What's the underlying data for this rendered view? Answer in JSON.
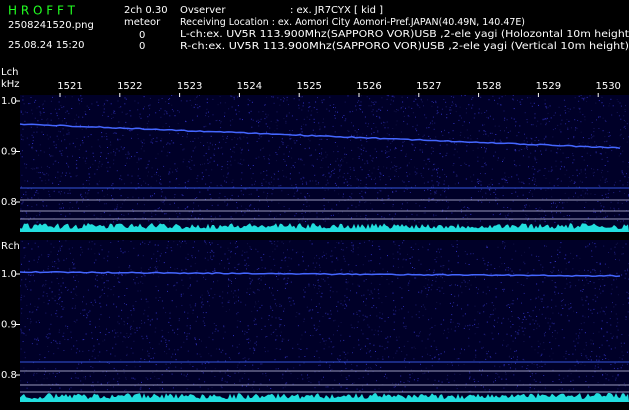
{
  "header": {
    "app": "H R O F F T",
    "mode": "2ch 0.30",
    "kind": "meteor",
    "file": "2508241520.png",
    "count_l": "0",
    "datetime": "25.08.24 15:20",
    "count_r": "0",
    "observer_label": "Ovserver",
    "observer_value": ": ex. JR7CYX [ kid ]",
    "location": "Receiving Location : ex. Aomori City Aomori-Pref.JAPAN(40.49N, 140.47E)",
    "lch_info": "L-ch:ex. UV5R 113.900Mhz(SAPPORO VOR)USB ,2-ele yagi (Holozontal 10m height",
    "rch_info": "R-ch:ex. UV5R 113.900Mhz(SAPPORO VOR)USB ,2-ele yagi (Vertical 10m height)"
  },
  "time_ticks": [
    1521,
    1522,
    1523,
    1524,
    1525,
    1526,
    1527,
    1528,
    1529,
    1530
  ],
  "panels": [
    {
      "label": "Lch",
      "unit": "kHz",
      "yticks": [
        {
          "value": 1,
          "label": "1.0"
        },
        0.9,
        0.8
      ]
    },
    {
      "label": "Rch",
      "yticks": [
        {
          "value": 1,
          "label": "1.0"
        },
        0.9,
        0.8
      ]
    }
  ]
}
